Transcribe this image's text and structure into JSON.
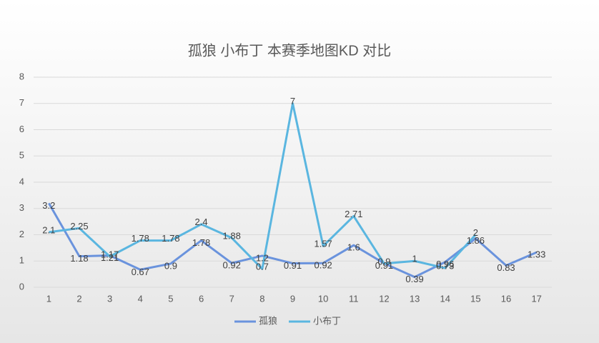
{
  "chart_data": {
    "type": "line",
    "title": "孤狼 小布丁 本赛季地图KD 对比",
    "categories": [
      "1",
      "2",
      "3",
      "4",
      "5",
      "6",
      "7",
      "8",
      "9",
      "10",
      "11",
      "12",
      "13",
      "14",
      "15",
      "16",
      "17"
    ],
    "series": [
      {
        "name": "孤狼",
        "color": "#6a93dd",
        "values": [
          3.2,
          1.18,
          1.21,
          0.67,
          0.9,
          1.78,
          0.92,
          1.2,
          0.91,
          0.92,
          1.6,
          0.91,
          0.39,
          0.96,
          1.86,
          0.83,
          1.33
        ]
      },
      {
        "name": "小布丁",
        "color": "#5ab6e0",
        "values": [
          2.1,
          2.25,
          1.17,
          1.78,
          1.78,
          2.4,
          1.88,
          0.7,
          7,
          1.57,
          2.71,
          0.9,
          1,
          0.73,
          2,
          null,
          null
        ]
      }
    ],
    "ylim": [
      0,
      8
    ],
    "yticks": [
      0,
      1,
      2,
      3,
      4,
      5,
      6,
      7,
      8
    ],
    "grid": true,
    "legend": "bottom"
  }
}
